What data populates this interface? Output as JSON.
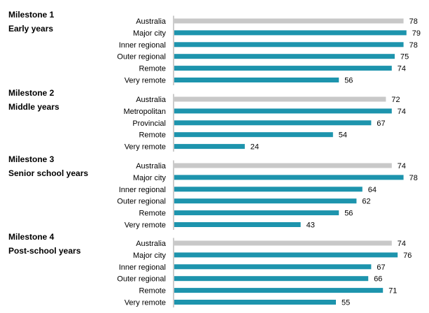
{
  "colors": {
    "benchmark": "#c8c8c8",
    "region": "#1d94ad",
    "axis": "#9a9a9a",
    "text": "#000000"
  },
  "chart_data": {
    "type": "bar",
    "orientation": "horizontal",
    "grouped": true,
    "xlim": [
      0,
      80
    ],
    "grid": false,
    "groups": [
      {
        "title_line1": "Milestone 1",
        "title_line2": "Early years",
        "categories": [
          "Australia",
          "Major city",
          "Inner regional",
          "Outer regional",
          "Remote",
          "Very remote"
        ],
        "values": [
          78,
          79,
          78,
          75,
          74,
          56
        ]
      },
      {
        "title_line1": "Milestone 2",
        "title_line2": "Middle years",
        "categories": [
          "Australia",
          "Metropolitan",
          "Provincial",
          "Remote",
          "Very remote"
        ],
        "values": [
          72,
          74,
          67,
          54,
          24
        ]
      },
      {
        "title_line1": "Milestone 3",
        "title_line2": "Senior school years",
        "categories": [
          "Australia",
          "Major city",
          "Inner regional",
          "Outer regional",
          "Remote",
          "Very remote"
        ],
        "values": [
          74,
          78,
          64,
          62,
          56,
          43
        ]
      },
      {
        "title_line1": "Milestone 4",
        "title_line2": "Post-school years",
        "categories": [
          "Australia",
          "Major city",
          "Inner regional",
          "Outer regional",
          "Remote",
          "Very remote"
        ],
        "values": [
          74,
          76,
          67,
          66,
          71,
          55
        ]
      }
    ]
  }
}
